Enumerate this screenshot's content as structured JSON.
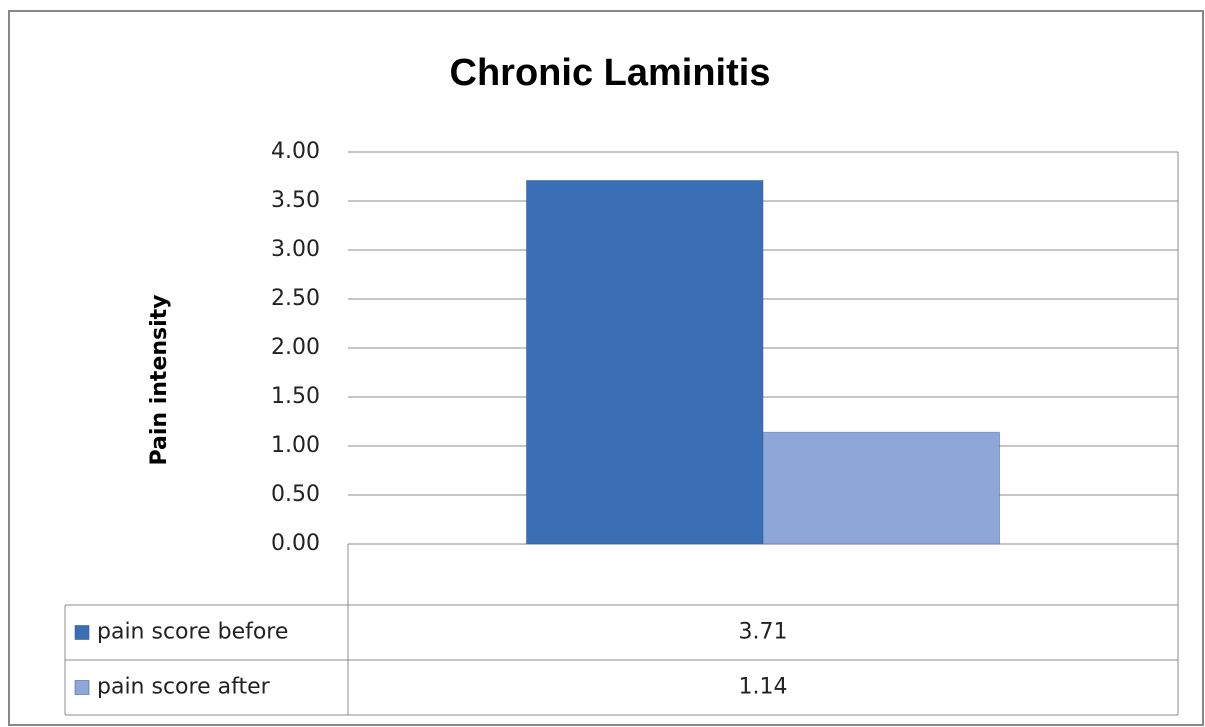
{
  "chart_data": {
    "type": "bar",
    "title": "Chronic Laminitis",
    "y_label": "Pain  intensity",
    "categories": [
      null
    ],
    "series": [
      {
        "name": "pain score before",
        "color": "#3a6fb6",
        "values": [
          3.71
        ]
      },
      {
        "name": "pain score after",
        "color": "#8ea7d8",
        "values": [
          1.14
        ]
      }
    ],
    "ylim": [
      0,
      4
    ],
    "yticks": [
      {
        "value": 0,
        "label": "0.00"
      },
      {
        "value": 0.5,
        "label": "0.50"
      },
      {
        "value": 1,
        "label": "1.00"
      },
      {
        "value": 1.5,
        "label": "1.50"
      },
      {
        "value": 2,
        "label": "2.00"
      },
      {
        "value": 2.5,
        "label": "2.50"
      },
      {
        "value": 3,
        "label": "3.00"
      },
      {
        "value": 3.5,
        "label": "3.50"
      },
      {
        "value": 4,
        "label": "4.00"
      }
    ],
    "grid": true,
    "legend": "data-table"
  }
}
